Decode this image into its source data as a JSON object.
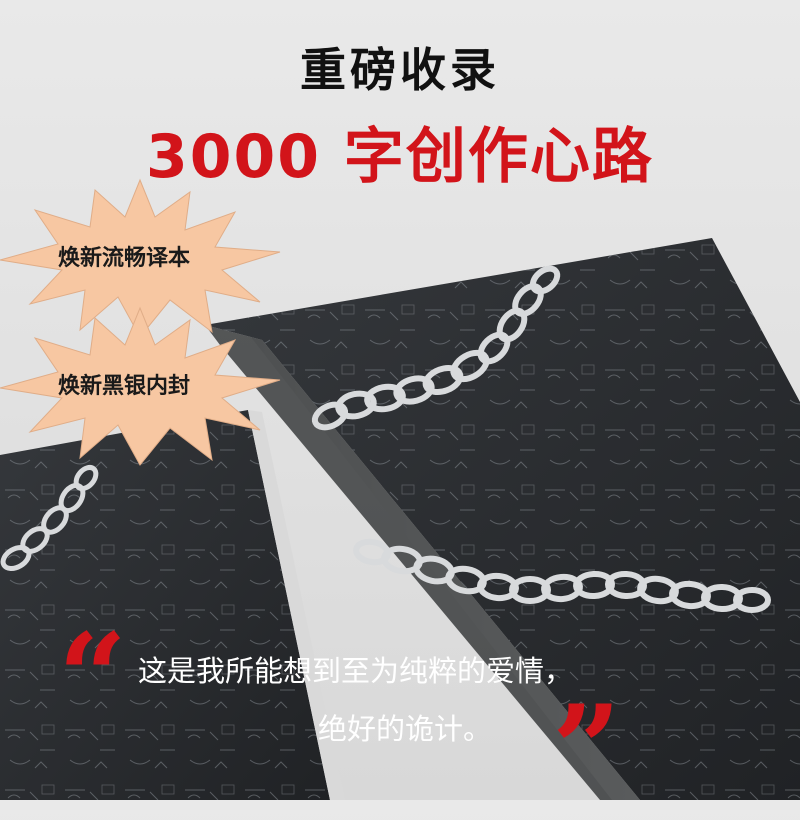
{
  "headline": {
    "line1": "重磅收录",
    "line2": "3000 字创作心路"
  },
  "badges": [
    {
      "label": "焕新流畅译本"
    },
    {
      "label": "焕新黑银内封"
    }
  ],
  "quote": {
    "line1": "这是我所能想到至为纯粹的爱情，",
    "line2": "绝好的诡计。",
    "open_mark": "“",
    "close_mark": "”"
  },
  "colors": {
    "accent_red": "#d2141a",
    "book_cover": "#2a2c2f",
    "burst_fill": "#f7c7a2"
  }
}
